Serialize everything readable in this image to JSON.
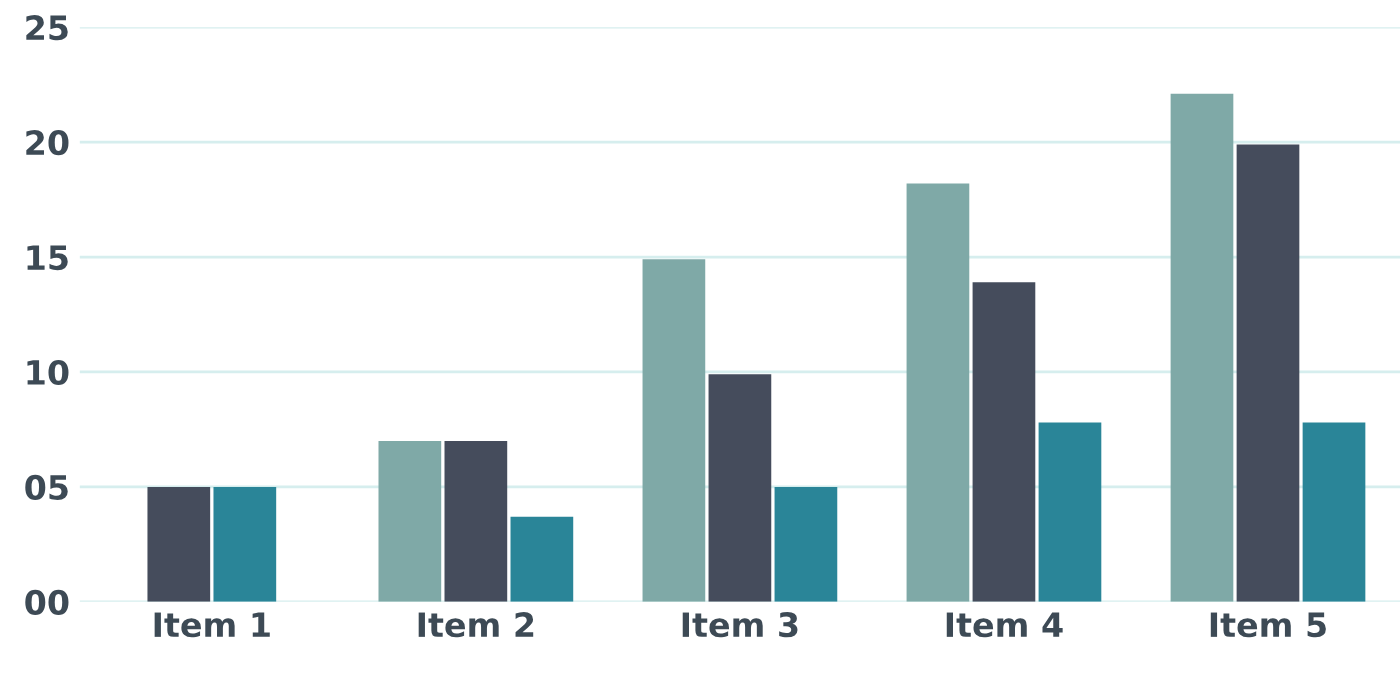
{
  "chart_data": {
    "type": "bar",
    "categories": [
      "Item 1",
      "Item 2",
      "Item 3",
      "Item 4",
      "Item 5"
    ],
    "series": [
      {
        "color": "#7fa9a7",
        "values": [
          null,
          7,
          14.9,
          18.2,
          22.1
        ]
      },
      {
        "color": "#454c5c",
        "values": [
          5,
          7,
          9.9,
          13.9,
          19.9
        ]
      },
      {
        "color": "#2a8598",
        "values": [
          5,
          3.7,
          5,
          7.8,
          7.8
        ]
      }
    ],
    "ylim": [
      0,
      25
    ],
    "yticks": [
      {
        "value": 0,
        "label": "00"
      },
      {
        "value": 5,
        "label": "05"
      },
      10,
      15,
      20,
      25
    ],
    "grid": "y",
    "legend": false
  }
}
